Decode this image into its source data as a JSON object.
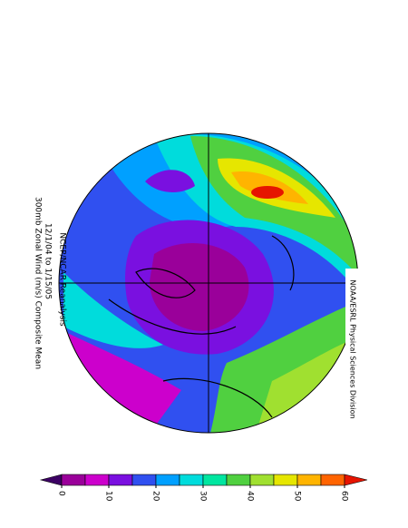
{
  "title": {
    "line1": "300mb Zonal Wind (m/s) Composite Mean",
    "line2": "12/1/04  to  1/15/05",
    "source": "NCEP/NCAR Reanalysis"
  },
  "credit": "NOAA/ESRL Physical Sciences Division",
  "colorbar": {
    "levels": [
      0,
      5,
      10,
      15,
      20,
      25,
      30,
      35,
      40,
      45,
      50,
      55,
      60
    ],
    "colors": [
      "#3c0064",
      "#9a009a",
      "#cc00cc",
      "#7a10e0",
      "#3050f0",
      "#00a0ff",
      "#00dcdc",
      "#00e6a0",
      "#50d040",
      "#a0e030",
      "#e6e600",
      "#ffb400",
      "#ff6400",
      "#e61400"
    ],
    "ticks": [
      0,
      10,
      20,
      30,
      40,
      50,
      60
    ]
  }
}
